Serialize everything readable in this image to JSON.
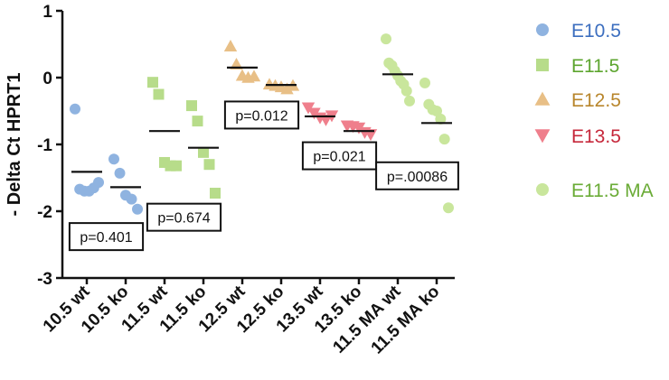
{
  "chart_data": {
    "type": "scatter",
    "ylabel": "- Delta Ct HPRT1",
    "ylim": [
      -3,
      1
    ],
    "yticks": [
      1,
      0,
      -1,
      -2,
      -3
    ],
    "categories": [
      "10.5 wt",
      "10.5 ko",
      "11.5 wt",
      "11.5 ko",
      "12.5 wt",
      "12.5 ko",
      "13.5 wt",
      "13.5 ko",
      "11.5 MA wt",
      "11.5 MA ko"
    ],
    "series": [
      {
        "name": "E10.5",
        "marker": "circle",
        "color": "#8fb3e0",
        "label_color": "#3c6ebf",
        "groups": [
          {
            "category": "10.5 wt",
            "values": [
              -0.47,
              -1.67,
              -1.7,
              -1.7,
              -1.65,
              -1.57
            ],
            "mean": -1.41
          },
          {
            "category": "10.5 ko",
            "values": [
              -1.22,
              -1.43,
              -1.76,
              -1.82,
              -1.97
            ],
            "mean": -1.64
          }
        ]
      },
      {
        "name": "E11.5",
        "marker": "square",
        "color": "#b7dc8a",
        "label_color": "#5da52f",
        "groups": [
          {
            "category": "11.5 wt",
            "values": [
              -0.07,
              -0.25,
              -1.27,
              -1.32,
              -1.32
            ],
            "mean": -0.8
          },
          {
            "category": "11.5 ko",
            "values": [
              -0.42,
              -0.65,
              -1.12,
              -1.3,
              -1.73
            ],
            "mean": -1.05
          }
        ]
      },
      {
        "name": "E12.5",
        "marker": "triangle-up",
        "color": "#e8bf86",
        "label_color": "#b8862c",
        "groups": [
          {
            "category": "12.5 wt",
            "values": [
              0.47,
              0.2,
              0.03,
              0.0,
              0.02
            ],
            "mean": 0.15
          },
          {
            "category": "12.5 ko",
            "values": [
              -0.1,
              -0.12,
              -0.14,
              -0.17,
              -0.12
            ],
            "mean": -0.11
          }
        ]
      },
      {
        "name": "E13.5",
        "marker": "triangle-down",
        "color": "#ef7f8c",
        "label_color": "#c6283b",
        "groups": [
          {
            "category": "13.5 wt",
            "values": [
              -0.45,
              -0.53,
              -0.6,
              -0.63,
              -0.57
            ],
            "mean": -0.58
          },
          {
            "category": "13.5 ko",
            "values": [
              -0.72,
              -0.73,
              -0.75,
              -0.82,
              -0.85
            ],
            "mean": -0.8
          }
        ]
      },
      {
        "name": "E11.5 MA",
        "marker": "circle",
        "color": "#c9e69c",
        "label_color": "#6aab36",
        "groups": [
          {
            "category": "11.5 MA wt",
            "values": [
              0.58,
              0.22,
              0.18,
              0.1,
              0.03,
              -0.05,
              -0.1,
              -0.2,
              -0.35
            ],
            "mean": 0.05
          },
          {
            "category": "11.5 MA ko",
            "values": [
              -0.08,
              -0.4,
              -0.48,
              -0.5,
              -0.62,
              -0.92,
              -1.95
            ],
            "mean": -0.68
          }
        ]
      }
    ],
    "pvalues": [
      {
        "text": "p=0.401",
        "between": [
          0,
          1
        ],
        "y": -2.38
      },
      {
        "text": "p=0.674",
        "between": [
          2,
          3
        ],
        "y": -2.09
      },
      {
        "text": "p=0.012",
        "between": [
          4,
          5
        ],
        "y": -0.56
      },
      {
        "text": "p=0.021",
        "between": [
          6,
          7
        ],
        "y": -1.17
      },
      {
        "text": "p=.00086",
        "between": [
          8,
          9
        ],
        "y": -1.47
      }
    ],
    "legend_placement": "right",
    "grid": false
  }
}
